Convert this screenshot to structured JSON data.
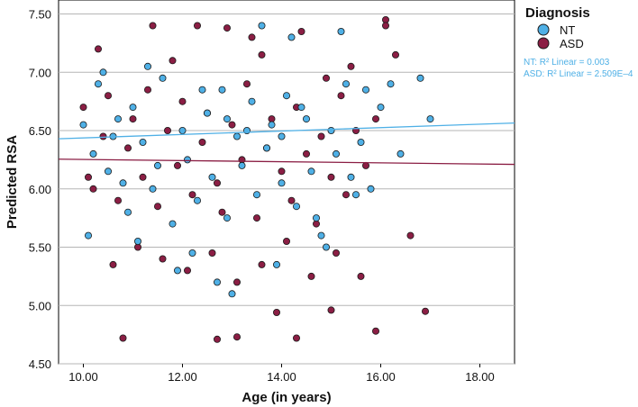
{
  "chart_data": {
    "type": "scatter",
    "title": "",
    "xlabel": "Age (in years)",
    "ylabel": "Predicted RSA",
    "xlim": [
      9.5,
      18.7
    ],
    "ylim": [
      4.5,
      7.62
    ],
    "xticks": [
      10,
      12,
      14,
      16,
      18
    ],
    "xtick_labels": [
      "10.00",
      "12.00",
      "14.00",
      "16.00",
      "18.00"
    ],
    "yticks": [
      4.5,
      5.0,
      5.5,
      6.0,
      6.5,
      7.0,
      7.5
    ],
    "ytick_labels": [
      "4.50",
      "5.00",
      "5.50",
      "6.00",
      "6.50",
      "7.00",
      "7.50"
    ],
    "grid": "horizontal",
    "legend": {
      "title": "Diagnosis",
      "position": "top-right"
    },
    "series": [
      {
        "name": "NT",
        "color": "#4fb0e6",
        "fit_label": "NT: R² Linear = 0.003",
        "fit_line": {
          "x": [
            9.5,
            18.7
          ],
          "y": [
            6.43,
            6.565
          ]
        },
        "x": [
          10.0,
          10.2,
          10.3,
          10.5,
          10.7,
          10.9,
          11.0,
          11.2,
          11.4,
          11.6,
          11.8,
          12.0,
          12.1,
          12.3,
          12.5,
          12.6,
          12.8,
          12.9,
          13.1,
          13.2,
          13.4,
          13.5,
          13.7,
          13.8,
          14.0,
          14.1,
          14.3,
          14.5,
          14.6,
          14.8,
          15.0,
          15.1,
          15.3,
          15.5,
          15.6,
          15.8,
          16.0,
          10.1,
          10.6,
          11.1,
          11.5,
          12.2,
          12.7,
          13.3,
          13.9,
          14.4,
          14.9,
          15.4,
          16.4,
          16.8,
          17.0,
          10.4,
          11.3,
          12.4,
          13.6,
          14.2,
          15.2,
          16.2,
          11.9,
          13.0,
          14.7,
          15.7,
          10.8,
          12.9,
          14.0
        ],
        "y": [
          6.55,
          6.3,
          6.9,
          6.15,
          6.6,
          5.8,
          6.7,
          6.4,
          6.0,
          6.95,
          5.7,
          6.5,
          6.25,
          5.9,
          6.65,
          6.1,
          6.85,
          5.75,
          6.45,
          6.2,
          6.75,
          5.95,
          6.35,
          6.55,
          6.05,
          6.8,
          5.85,
          6.6,
          6.15,
          5.6,
          6.5,
          6.3,
          6.9,
          5.95,
          6.4,
          6.0,
          6.7,
          5.6,
          6.45,
          5.55,
          6.2,
          5.45,
          5.2,
          6.5,
          5.35,
          6.7,
          5.5,
          6.1,
          6.3,
          6.95,
          6.6,
          7.0,
          7.05,
          6.85,
          7.4,
          7.3,
          7.35,
          6.9,
          5.3,
          5.1,
          5.75,
          6.85,
          6.05,
          6.6,
          6.45
        ]
      },
      {
        "name": "ASD",
        "color": "#8b1e44",
        "fit_label": "ASD: R² Linear = 2.509E–4",
        "fit_line": {
          "x": [
            9.5,
            18.7
          ],
          "y": [
            6.255,
            6.21
          ]
        },
        "x": [
          10.0,
          10.2,
          10.4,
          10.5,
          10.7,
          10.9,
          11.0,
          11.2,
          11.3,
          11.5,
          11.7,
          11.9,
          12.0,
          12.2,
          12.4,
          12.5,
          12.7,
          12.8,
          13.0,
          13.2,
          13.3,
          13.5,
          13.7,
          13.8,
          14.0,
          14.2,
          14.3,
          14.5,
          14.7,
          14.8,
          15.0,
          15.2,
          15.3,
          15.5,
          15.7,
          15.9,
          10.1,
          10.6,
          11.1,
          11.6,
          12.1,
          12.6,
          13.1,
          13.6,
          14.1,
          14.6,
          15.1,
          15.6,
          16.1,
          16.3,
          16.6,
          16.9,
          10.8,
          12.7,
          13.1,
          13.9,
          14.3,
          15.0,
          15.9,
          16.1,
          11.4,
          12.3,
          12.9,
          13.4,
          14.4,
          10.3,
          11.8,
          13.6,
          14.9,
          15.4
        ],
        "y": [
          6.7,
          6.0,
          6.45,
          6.8,
          5.9,
          6.35,
          6.6,
          6.1,
          6.85,
          5.85,
          6.5,
          6.2,
          6.75,
          5.95,
          6.4,
          6.65,
          6.05,
          5.8,
          6.55,
          6.25,
          6.9,
          5.75,
          6.35,
          6.6,
          6.15,
          5.9,
          6.7,
          6.3,
          5.7,
          6.45,
          6.1,
          6.8,
          5.95,
          6.5,
          6.2,
          6.6,
          6.1,
          5.35,
          5.5,
          5.4,
          5.3,
          5.45,
          5.2,
          5.35,
          5.55,
          5.25,
          5.45,
          5.25,
          7.45,
          7.15,
          5.6,
          4.95,
          4.72,
          4.71,
          4.73,
          4.94,
          4.72,
          4.96,
          4.78,
          7.4,
          7.4,
          7.4,
          7.38,
          7.3,
          7.35,
          7.2,
          7.1,
          7.15,
          6.95,
          7.05
        ]
      }
    ]
  }
}
